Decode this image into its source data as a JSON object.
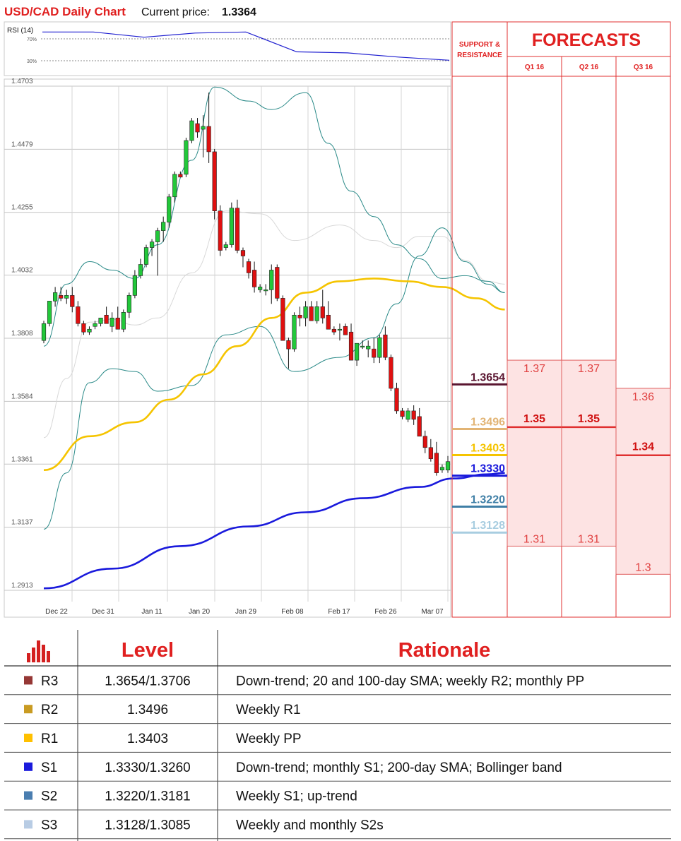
{
  "header": {
    "title": "USD/CAD Daily Chart",
    "price_label": "Current price:",
    "price_value": "1.3364"
  },
  "colors": {
    "title_red": "#e02020",
    "bull": "#22c83a",
    "bear": "#e01010",
    "sma_yellow": "#f5c400",
    "sma_blue": "#1a1adc",
    "bollinger": "#2a8a88",
    "sma_faint": "#d8d8d8",
    "forecast_fill": "#fde3e3",
    "forecast_line": "#e03030"
  },
  "chart_data": [
    {
      "type": "line",
      "title": "RSI (14)",
      "ylim": [
        0,
        100
      ],
      "levels": [
        70,
        30
      ],
      "level_labels": [
        "70%",
        "30%"
      ],
      "x": [
        "Dec 22",
        "Dec 31",
        "Jan 11",
        "Jan 20",
        "Jan 29",
        "Feb 08",
        "Feb 17",
        "Feb 26",
        "Mar 07"
      ],
      "values": [
        82,
        82,
        72,
        80,
        82,
        44,
        42,
        34,
        28
      ]
    },
    {
      "type": "candlestick",
      "title": "USD/CAD Daily Chart",
      "ylim": [
        1.2913,
        1.4703
      ],
      "y_ticks": [
        "1.4703",
        "1.4479",
        "1.4255",
        "1.4032",
        "1.3808",
        "1.3584",
        "1.3361",
        "1.3137",
        "1.2913"
      ],
      "x_ticks": [
        "Dec 22",
        "Dec 31",
        "Jan 11",
        "Jan 20",
        "Jan 29",
        "Feb 08",
        "Feb 17",
        "Feb 26",
        "Mar 07"
      ],
      "candles": [
        [
          1.38,
          1.387,
          1.379,
          1.386
        ],
        [
          1.386,
          1.394,
          1.385,
          1.394
        ],
        [
          1.394,
          1.399,
          1.392,
          1.397
        ],
        [
          1.396,
          1.399,
          1.394,
          1.395
        ],
        [
          1.395,
          1.398,
          1.393,
          1.396
        ],
        [
          1.396,
          1.399,
          1.39,
          1.392
        ],
        [
          1.392,
          1.394,
          1.385,
          1.386
        ],
        [
          1.386,
          1.387,
          1.382,
          1.383
        ],
        [
          1.383,
          1.385,
          1.382,
          1.384
        ],
        [
          1.385,
          1.387,
          1.384,
          1.386
        ],
        [
          1.386,
          1.388,
          1.385,
          1.388
        ],
        [
          1.389,
          1.392,
          1.386,
          1.386
        ],
        [
          1.385,
          1.39,
          1.383,
          1.388
        ],
        [
          1.388,
          1.392,
          1.384,
          1.384
        ],
        [
          1.384,
          1.391,
          1.383,
          1.39
        ],
        [
          1.39,
          1.397,
          1.388,
          1.396
        ],
        [
          1.396,
          1.405,
          1.395,
          1.403
        ],
        [
          1.403,
          1.409,
          1.402,
          1.407
        ],
        [
          1.407,
          1.414,
          1.406,
          1.413
        ],
        [
          1.413,
          1.416,
          1.41,
          1.415
        ],
        [
          1.415,
          1.42,
          1.403,
          1.419
        ],
        [
          1.419,
          1.424,
          1.415,
          1.422
        ],
        [
          1.422,
          1.432,
          1.42,
          1.431
        ],
        [
          1.431,
          1.44,
          1.429,
          1.439
        ],
        [
          1.439,
          1.44,
          1.438,
          1.438
        ],
        [
          1.439,
          1.452,
          1.438,
          1.451
        ],
        [
          1.451,
          1.459,
          1.45,
          1.458
        ],
        [
          1.457,
          1.459,
          1.452,
          1.454
        ],
        [
          1.455,
          1.46,
          1.445,
          1.456
        ],
        [
          1.456,
          1.468,
          1.443,
          1.447
        ],
        [
          1.447,
          1.448,
          1.423,
          1.426
        ],
        [
          1.426,
          1.428,
          1.41,
          1.412
        ],
        [
          1.413,
          1.415,
          1.412,
          1.414
        ],
        [
          1.414,
          1.429,
          1.413,
          1.427
        ],
        [
          1.427,
          1.43,
          1.411,
          1.412
        ],
        [
          1.412,
          1.413,
          1.406,
          1.41
        ],
        [
          1.408,
          1.409,
          1.402,
          1.404
        ],
        [
          1.405,
          1.408,
          1.397,
          1.399
        ],
        [
          1.398,
          1.4,
          1.397,
          1.399
        ],
        [
          1.398,
          1.4,
          1.396,
          1.398
        ],
        [
          1.398,
          1.407,
          1.393,
          1.405
        ],
        [
          1.406,
          1.407,
          1.394,
          1.395
        ],
        [
          1.395,
          1.396,
          1.38,
          1.38
        ],
        [
          1.38,
          1.381,
          1.37,
          1.377
        ],
        [
          1.377,
          1.39,
          1.376,
          1.389
        ],
        [
          1.389,
          1.392,
          1.385,
          1.388
        ],
        [
          1.388,
          1.394,
          1.385,
          1.392
        ],
        [
          1.392,
          1.394,
          1.387,
          1.387
        ],
        [
          1.387,
          1.394,
          1.386,
          1.392
        ],
        [
          1.392,
          1.398,
          1.386,
          1.388
        ],
        [
          1.389,
          1.394,
          1.384,
          1.384
        ],
        [
          1.384,
          1.385,
          1.382,
          1.383
        ],
        [
          1.384,
          1.386,
          1.38,
          1.384
        ],
        [
          1.385,
          1.386,
          1.382,
          1.382
        ],
        [
          1.383,
          1.386,
          1.373,
          1.373
        ],
        [
          1.373,
          1.379,
          1.371,
          1.379
        ],
        [
          1.378,
          1.38,
          1.377,
          1.378
        ],
        [
          1.377,
          1.38,
          1.374,
          1.378
        ],
        [
          1.377,
          1.381,
          1.372,
          1.374
        ],
        [
          1.374,
          1.382,
          1.372,
          1.381
        ],
        [
          1.382,
          1.385,
          1.373,
          1.374
        ],
        [
          1.374,
          1.375,
          1.362,
          1.363
        ],
        [
          1.363,
          1.365,
          1.354,
          1.355
        ],
        [
          1.355,
          1.356,
          1.352,
          1.353
        ],
        [
          1.352,
          1.356,
          1.351,
          1.355
        ],
        [
          1.355,
          1.357,
          1.35,
          1.352
        ],
        [
          1.353,
          1.356,
          1.346,
          1.346
        ],
        [
          1.346,
          1.348,
          1.34,
          1.342
        ],
        [
          1.342,
          1.345,
          1.337,
          1.338
        ],
        [
          1.34,
          1.344,
          1.332,
          1.333
        ],
        [
          1.334,
          1.336,
          1.333,
          1.335
        ],
        [
          1.334,
          1.339,
          1.333,
          1.337
        ]
      ],
      "sma_yellow": [
        [
          0,
          1.334
        ],
        [
          8,
          1.346
        ],
        [
          16,
          1.351
        ],
        [
          22,
          1.359
        ],
        [
          28,
          1.368
        ],
        [
          34,
          1.378
        ],
        [
          40,
          1.388
        ],
        [
          46,
          1.397
        ],
        [
          52,
          1.401
        ],
        [
          58,
          1.402
        ],
        [
          64,
          1.401
        ],
        [
          70,
          1.399
        ],
        [
          76,
          1.395
        ],
        [
          81,
          1.391
        ]
      ],
      "sma_blue": [
        [
          0,
          1.292
        ],
        [
          12,
          1.299
        ],
        [
          24,
          1.307
        ],
        [
          36,
          1.314
        ],
        [
          46,
          1.319
        ],
        [
          56,
          1.324
        ],
        [
          66,
          1.328
        ],
        [
          72,
          1.331
        ],
        [
          78,
          1.3325
        ],
        [
          81,
          1.333
        ]
      ],
      "bollinger_upper": [
        [
          0,
          1.313
        ],
        [
          4,
          1.333
        ],
        [
          8,
          1.365
        ],
        [
          12,
          1.37
        ],
        [
          16,
          1.369
        ],
        [
          20,
          1.362
        ],
        [
          26,
          1.364
        ],
        [
          32,
          1.382
        ],
        [
          38,
          1.385
        ],
        [
          44,
          1.369
        ],
        [
          52,
          1.374
        ],
        [
          58,
          1.381
        ],
        [
          62,
          1.393
        ],
        [
          66,
          1.41
        ],
        [
          70,
          1.42
        ],
        [
          74,
          1.408
        ],
        [
          78,
          1.4
        ],
        [
          81,
          1.397
        ]
      ],
      "bollinger_lower": [
        [
          0,
          1.378
        ],
        [
          4,
          1.4
        ],
        [
          8,
          1.408
        ],
        [
          12,
          1.405
        ],
        [
          16,
          1.402
        ],
        [
          20,
          1.414
        ],
        [
          26,
          1.444
        ],
        [
          30,
          1.47
        ],
        [
          36,
          1.465
        ],
        [
          40,
          1.462
        ],
        [
          46,
          1.468
        ],
        [
          50,
          1.45
        ],
        [
          54,
          1.433
        ],
        [
          58,
          1.424
        ],
        [
          62,
          1.414
        ],
        [
          66,
          1.409
        ],
        [
          70,
          1.402
        ],
        [
          74,
          1.403
        ],
        [
          78,
          1.401
        ],
        [
          81,
          1.397
        ]
      ],
      "levels": [
        {
          "value": 1.3654,
          "label": "1.3654",
          "color": "#5a1530"
        },
        {
          "value": 1.3496,
          "label": "1.3496",
          "color": "#e2b474"
        },
        {
          "value": 1.3403,
          "label": "1.3403",
          "color": "#f5c400"
        },
        {
          "value": 1.333,
          "label": "1.3330",
          "color": "#1a1adc"
        },
        {
          "value": 1.322,
          "label": "1.3220",
          "color": "#3f7fa6"
        },
        {
          "value": 1.3128,
          "label": "1.3128",
          "color": "#a8cde0"
        }
      ],
      "support_resistance_header": "SUPPORT & RESISTANCE",
      "forecasts_title": "FORECASTS",
      "forecasts": [
        {
          "period": "Q1 16",
          "high": 1.37,
          "high_label": "1.37",
          "mid": 1.35,
          "mid_label": "1.35",
          "low": 1.31,
          "low_label": "1.31"
        },
        {
          "period": "Q2 16",
          "high": 1.37,
          "high_label": "1.37",
          "mid": 1.35,
          "mid_label": "1.35",
          "low": 1.31,
          "low_label": "1.31"
        },
        {
          "period": "Q3 16",
          "high": 1.36,
          "high_label": "1.36",
          "mid": 1.34,
          "mid_label": "1.34",
          "low": 1.3,
          "low_label": "1.3"
        }
      ]
    }
  ],
  "table": {
    "col_level": "Level",
    "col_rationale": "Rationale",
    "rows": [
      {
        "name": "R3",
        "color": "#953735",
        "level": "1.3654/1.3706",
        "rationale": "Down-trend; 20 and 100-day SMA; weekly R2; monthly PP"
      },
      {
        "name": "R2",
        "color": "#c99b22",
        "level": "1.3496",
        "rationale": "Weekly R1"
      },
      {
        "name": "R1",
        "color": "#ffc000",
        "level": "1.3403",
        "rationale": "Weekly PP"
      },
      {
        "name": "S1",
        "color": "#1a1adc",
        "level": "1.3330/1.3260",
        "rationale": "Down-trend; monthly S1; 200-day SMA; Bollinger band"
      },
      {
        "name": "S2",
        "color": "#4a7eb0",
        "level": "1.3220/1.3181",
        "rationale": "Weekly S1; up-trend"
      },
      {
        "name": "S3",
        "color": "#b8cce4",
        "level": "1.3128/1.3085",
        "rationale": "Weekly and monthly S2s"
      }
    ]
  }
}
